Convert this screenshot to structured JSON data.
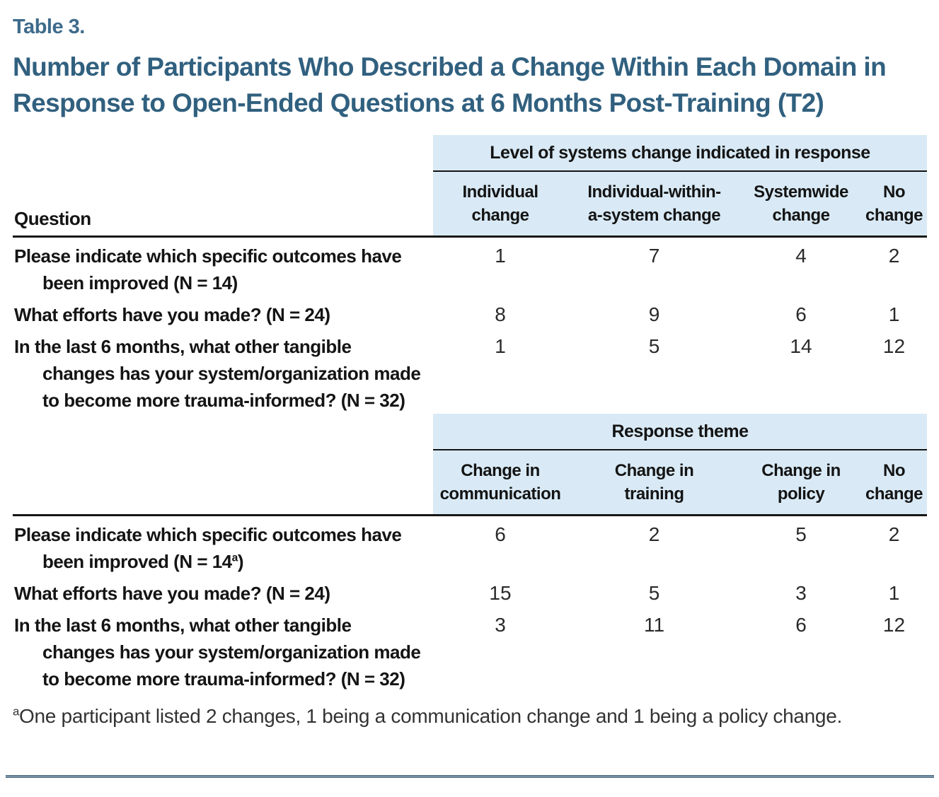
{
  "page": {
    "table_label": "Table 3.",
    "title": "Number of Participants Who Described a Change Within Each Domain in Response to Open-Ended Questions at 6 Months Post-Training (T2)"
  },
  "question_column_header": "Question",
  "tables": [
    {
      "group_header": "Level of systems change indicated in response",
      "columns": [
        "Individual\nchange",
        "Individual-within-\na-system change",
        "Systemwide\nchange",
        "No\nchange"
      ],
      "rows": [
        {
          "question": "Please indicate which specific outcomes have\nbeen improved (N = 14)",
          "values": [
            "1",
            "7",
            "4",
            "2"
          ]
        },
        {
          "question": "What efforts have you made? (N = 24)",
          "values": [
            "8",
            "9",
            "6",
            "1"
          ]
        },
        {
          "question": "In the last 6 months, what other tangible\nchanges has your system/organization made\nto become more trauma-informed? (N = 32)",
          "values": [
            "1",
            "5",
            "14",
            "12"
          ]
        }
      ]
    },
    {
      "group_header": "Response theme",
      "columns": [
        "Change in\ncommunication",
        "Change in\ntraining",
        "Change in\npolicy",
        "No\nchange"
      ],
      "rows": [
        {
          "question_before_sup": "Please indicate which specific outcomes have\nbeen improved (N = 14",
          "question_sup": "a",
          "question_after_sup": ")",
          "values": [
            "6",
            "2",
            "5",
            "2"
          ]
        },
        {
          "question": "What efforts have you made? (N = 24)",
          "values": [
            "15",
            "5",
            "3",
            "1"
          ]
        },
        {
          "question": "In the last 6 months, what other tangible\nchanges has your system/organization made\nto become more trauma-informed? (N = 32)",
          "values": [
            "3",
            "11",
            "6",
            "12"
          ]
        }
      ]
    }
  ],
  "footnote": {
    "sup": "a",
    "text": "One participant listed 2 changes, 1 being a communication change and 1 being a policy change."
  },
  "colors": {
    "accent_title": "#31607f",
    "table_label": "#3d6b8b",
    "header_bg": "#d9eaf6",
    "rule_blue": "#54728c",
    "text": "#1e1e1e"
  }
}
